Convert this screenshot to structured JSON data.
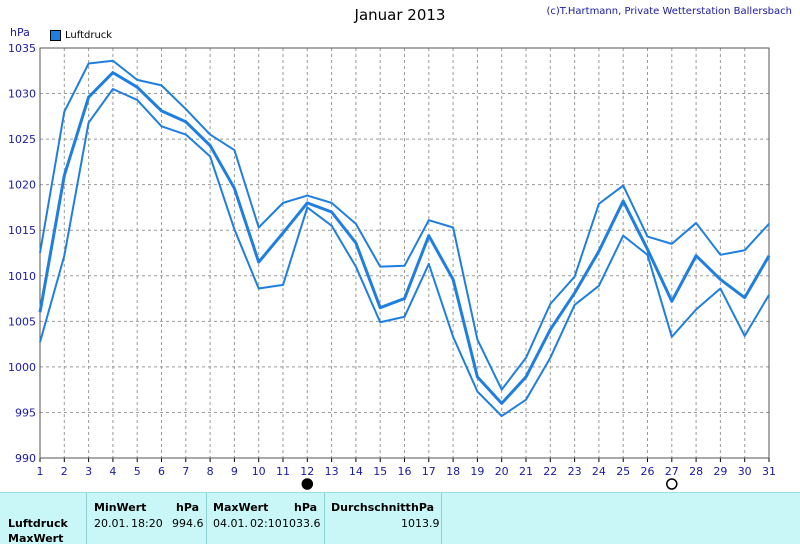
{
  "header": {
    "title": "Januar 2013",
    "credit": "(c)T.Hartmann, Private Wetterstation Ballersbach",
    "unit": "hPa",
    "legend_label": "Luftdruck"
  },
  "colors": {
    "series": "#1f7fe0",
    "grid": "#9a9a9a",
    "axis_text": "#1a1aa0"
  },
  "chart_data": {
    "type": "line",
    "title": "Januar 2013",
    "ylabel": "hPa",
    "ylim": [
      990,
      1035
    ],
    "yticks": [
      990,
      995,
      1000,
      1005,
      1010,
      1015,
      1020,
      1025,
      1030,
      1035
    ],
    "x": [
      1,
      2,
      3,
      4,
      5,
      6,
      7,
      8,
      9,
      10,
      11,
      12,
      13,
      14,
      15,
      16,
      17,
      18,
      19,
      20,
      21,
      22,
      23,
      24,
      25,
      26,
      27,
      28,
      29,
      30,
      31
    ],
    "grid": true,
    "series": [
      {
        "name": "Luftdruck",
        "role": "max",
        "values": [
          1012.5,
          1028.0,
          1033.3,
          1033.6,
          1031.5,
          1030.9,
          1028.3,
          1025.5,
          1023.8,
          1015.3,
          1018.0,
          1018.8,
          1018.0,
          1015.7,
          1011.0,
          1011.1,
          1016.1,
          1015.3,
          1003.0,
          997.5,
          1001.0,
          1006.9,
          1009.9,
          1017.9,
          1019.9,
          1014.3,
          1013.5,
          1015.8,
          1012.3,
          1012.8,
          1015.7
        ]
      },
      {
        "role": "avg",
        "values": [
          1006.0,
          1021.0,
          1029.6,
          1032.3,
          1030.7,
          1028.1,
          1026.9,
          1024.3,
          1019.6,
          1011.5,
          1014.7,
          1018.0,
          1017.0,
          1013.6,
          1006.5,
          1007.5,
          1014.4,
          1009.6,
          998.9,
          996.0,
          998.9,
          1004.1,
          1008.1,
          1012.7,
          1018.2,
          1012.9,
          1007.2,
          1012.2,
          1009.6,
          1007.6,
          1012.2
        ]
      },
      {
        "role": "min",
        "values": [
          1002.7,
          1012.2,
          1026.8,
          1030.5,
          1029.3,
          1026.4,
          1025.5,
          1023.1,
          1015.1,
          1008.6,
          1009.0,
          1017.5,
          1015.5,
          1011.0,
          1004.9,
          1005.5,
          1011.3,
          1003.3,
          997.3,
          994.6,
          996.4,
          1001.0,
          1006.8,
          1008.9,
          1014.4,
          1012.3,
          1003.3,
          1006.3,
          1008.6,
          1003.4,
          1007.9
        ]
      }
    ],
    "markers": [
      {
        "day": 12,
        "symbol": "full-moon-filled"
      },
      {
        "day": 27,
        "symbol": "new-moon-outline"
      }
    ]
  },
  "summary": {
    "row_labels": [
      "Luftdruck",
      "MaxWert"
    ],
    "min": {
      "header": "MinWert",
      "unit": "hPa",
      "date": "20.01.",
      "time": "18:20",
      "value": "994.6"
    },
    "max": {
      "header": "MaxWert",
      "unit": "hPa",
      "date": "04.01.",
      "time": "02:10",
      "value": "1033.6"
    },
    "avg": {
      "header": "Durchschnitt",
      "unit": "hPa",
      "value": "1013.9"
    }
  }
}
